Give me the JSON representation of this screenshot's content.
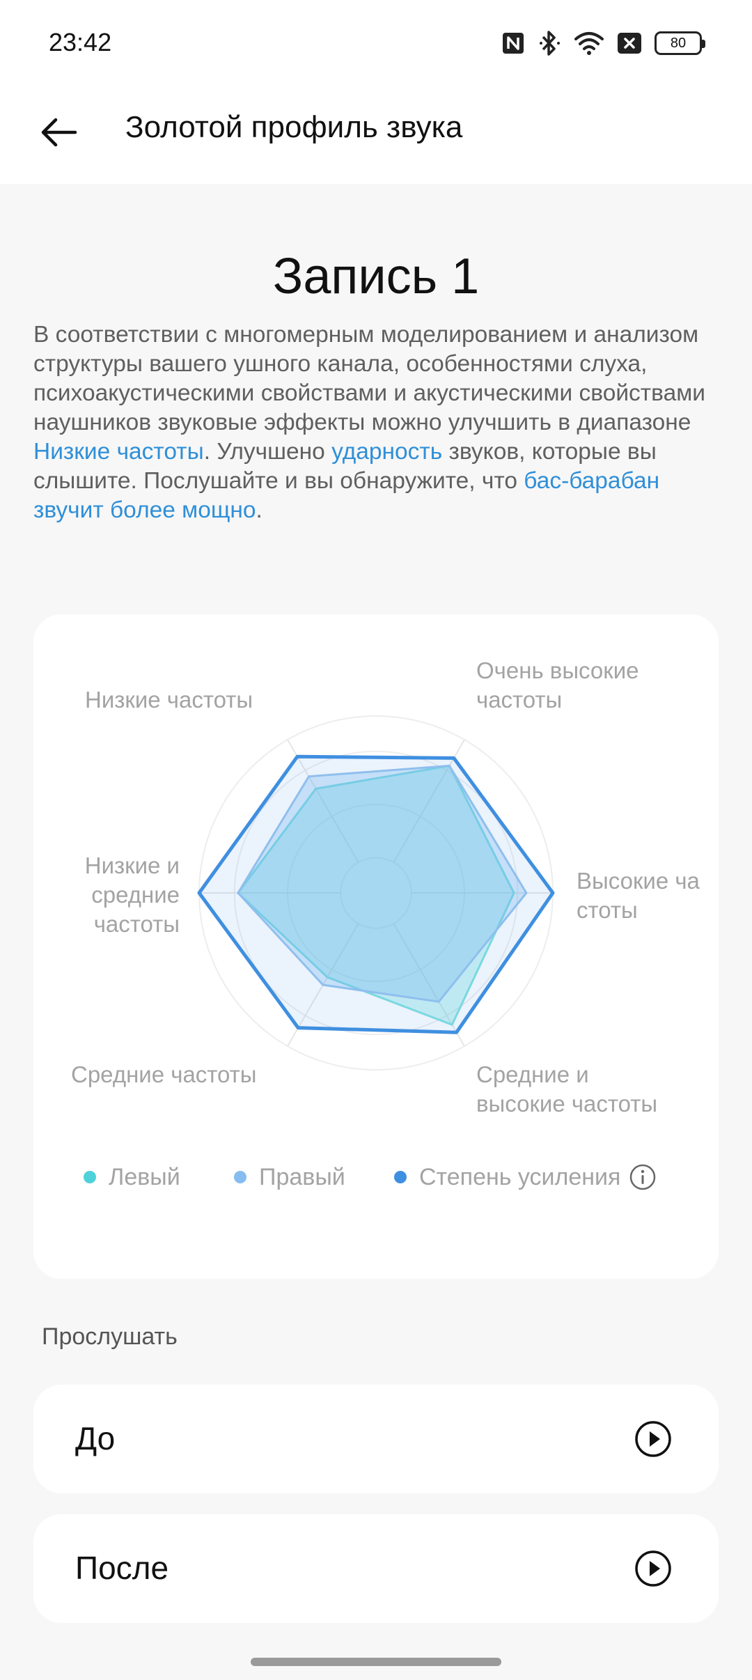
{
  "status_bar": {
    "time": "23:42",
    "icons": [
      "nfc-icon",
      "bluetooth-icon",
      "wifi-icon",
      "sim-blocked-icon"
    ],
    "battery_level": "80"
  },
  "app_bar": {
    "back_icon": "arrow-left-icon",
    "title": "Золотой профиль звука"
  },
  "record_title": "Запись 1",
  "description": {
    "part1": "В соответствии с многомерным моделированием и анализом структуры вашего ушного канала, особенностями слуха, психоакустическими свойствами и акустическими свойствами наушников звуковые эффекты можно улучшить в диапазоне ",
    "highlight1": "Низкие частоты",
    "part2": ". Улучшено ",
    "highlight2": "ударность",
    "part3": " звуков, которые вы слышите. Послушайте и вы обнаружите, что ",
    "highlight3": "бас-барабан звучит более мощно",
    "part4": "."
  },
  "chart_data": {
    "type": "radar",
    "axes": [
      "Очень высокие частоты",
      "Высокие частоты",
      "Средние и высокие частоты",
      "Средние частоты",
      "Низкие и средние частоты",
      "Низкие частоты"
    ],
    "axis_labels_display": {
      "very_high": [
        "Очень высокие",
        "частоты"
      ],
      "high": [
        "Высокие ча",
        "стоты"
      ],
      "mid_high": [
        "Средние и",
        "высокие частоты"
      ],
      "mid": [
        "Средние частоты"
      ],
      "low_mid": [
        "Низкие и",
        "средние",
        "частоты"
      ],
      "low": [
        "Низкие частоты"
      ]
    },
    "range": [
      0,
      1
    ],
    "grid_rings": [
      0.2,
      0.5,
      0.8,
      1.0
    ],
    "series": [
      {
        "name": "Левый",
        "color": "#4fd1d9",
        "values": [
          0.83,
          0.78,
          0.86,
          0.55,
          0.78,
          0.68
        ]
      },
      {
        "name": "Правый",
        "color": "#86bdf0",
        "values": [
          0.83,
          0.85,
          0.71,
          0.6,
          0.78,
          0.76
        ]
      },
      {
        "name": "Степень усиления",
        "color": "#3f8fe0",
        "values": [
          0.88,
          1.0,
          0.91,
          0.88,
          1.0,
          0.89
        ]
      }
    ],
    "legend_position": "bottom"
  },
  "listen": {
    "section_label": "Прослушать",
    "before_label": "До",
    "after_label": "После",
    "play_icon": "play-circle-icon"
  }
}
